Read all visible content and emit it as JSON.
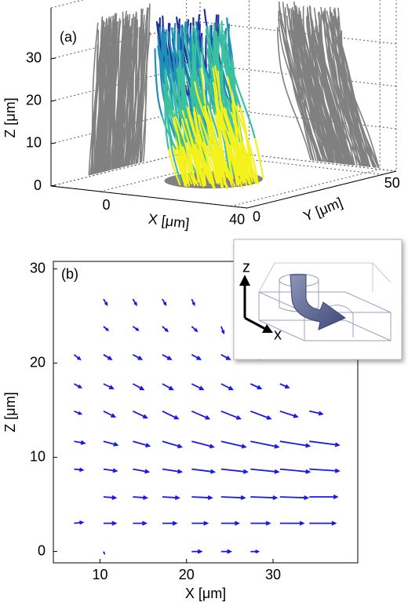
{
  "chart_data": [
    {
      "type": "trajectories3d",
      "panel_label": "(a)",
      "xlabel": "X [μm]",
      "ylabel": "Y [μm]",
      "zlabel": "Z [μm]",
      "xlim": [
        -15,
        45
      ],
      "ylim": [
        0,
        55
      ],
      "zlim": [
        0,
        42
      ],
      "xticks": [
        0,
        40
      ],
      "yticks": [
        0,
        50
      ],
      "zticks": [
        0,
        10,
        20,
        30
      ],
      "colormap": [
        "#22339a",
        "#1f8fb8",
        "#3bc0a0",
        "#f4f21c"
      ],
      "wall_color": "#808080"
    },
    {
      "type": "quiver",
      "panel_label": "(b)",
      "xlabel": "X [μm]",
      "ylabel": "Z [μm]",
      "xlim": [
        4.6,
        39.8
      ],
      "ylim": [
        -1.2,
        30.8
      ],
      "xticks": [
        10,
        20,
        30
      ],
      "yticks": [
        0,
        10,
        20,
        30
      ],
      "color": "#1a1ae6",
      "inset_labels": [
        "z",
        "x"
      ],
      "x": [
        10.4,
        13.8,
        17.2,
        20.6,
        10.4,
        13.8,
        17.2,
        20.6,
        24,
        7,
        10.4,
        13.8,
        17.2,
        20.6,
        24,
        27.4,
        7,
        10.4,
        13.8,
        17.2,
        20.6,
        24,
        27.4,
        30.8,
        7,
        10.4,
        13.8,
        17.2,
        20.6,
        24,
        27.4,
        30.8,
        34.2,
        7,
        10.4,
        13.8,
        17.2,
        20.6,
        24,
        27.4,
        30.8,
        34.2,
        7,
        10.4,
        13.8,
        17.2,
        20.6,
        24,
        27.4,
        30.8,
        34.2,
        10.4,
        13.8,
        17.2,
        20.6,
        24,
        27.4,
        30.8,
        34.2,
        7,
        10.4,
        13.8,
        17.2,
        20.6,
        24,
        27.4,
        30.8,
        34.2,
        10.4,
        20.6,
        24,
        27.4
      ],
      "y": [
        26.8,
        26.8,
        26.8,
        26.8,
        23.9,
        23.9,
        23.9,
        23.9,
        23.9,
        20.9,
        20.9,
        20.9,
        20.9,
        20.9,
        20.9,
        20.9,
        17.8,
        17.8,
        17.8,
        17.8,
        17.8,
        17.8,
        17.8,
        17.8,
        14.9,
        14.9,
        14.9,
        14.9,
        14.9,
        14.9,
        14.9,
        14.9,
        14.9,
        11.7,
        11.7,
        11.7,
        11.7,
        11.7,
        11.7,
        11.7,
        11.7,
        11.7,
        8.75,
        8.75,
        8.75,
        8.75,
        8.75,
        8.75,
        8.75,
        8.75,
        8.75,
        5.8,
        5.8,
        5.8,
        5.8,
        5.8,
        5.8,
        5.8,
        5.8,
        3,
        3,
        3,
        3,
        3,
        3,
        3,
        3,
        3,
        0,
        0,
        0,
        0
      ],
      "u": [
        0.4,
        0.4,
        0.4,
        0.3,
        0.5,
        0.6,
        0.6,
        0.6,
        0.3,
        0.7,
        0.9,
        1.0,
        1.0,
        1.0,
        1.0,
        1.0,
        0.8,
        1.1,
        1.2,
        1.2,
        1.3,
        1.3,
        1.2,
        1.0,
        0.8,
        1.3,
        1.6,
        1.8,
        2.0,
        2.2,
        2.3,
        2.0,
        1.5,
        1.2,
        1.6,
        1.9,
        2.2,
        2.5,
        2.8,
        3.2,
        3.4,
        3.4,
        1.0,
        1.5,
        1.8,
        2.2,
        2.6,
        3.0,
        3.2,
        3.4,
        3.4,
        1.4,
        1.6,
        1.9,
        2.3,
        2.7,
        3.0,
        3.2,
        3.2,
        1.0,
        1.4,
        1.5,
        1.6,
        1.8,
        2.0,
        2.2,
        2.7,
        3.0,
        0.1,
        1.1,
        1.1,
        0.9
      ],
      "v": [
        -0.6,
        -0.6,
        -0.6,
        -0.6,
        -0.4,
        -0.4,
        -0.5,
        -0.5,
        -0.7,
        -0.5,
        -0.5,
        -0.5,
        -0.5,
        -0.5,
        -0.5,
        -0.5,
        -0.4,
        -0.5,
        -0.6,
        -0.6,
        -0.6,
        -0.6,
        -0.5,
        -0.4,
        -0.3,
        -0.6,
        -0.7,
        -0.8,
        -0.8,
        -0.8,
        -0.8,
        -0.6,
        -0.3,
        -0.2,
        -0.4,
        -0.5,
        -0.6,
        -0.6,
        -0.6,
        -0.6,
        -0.5,
        -0.4,
        -0.1,
        -0.2,
        -0.3,
        -0.3,
        -0.3,
        -0.3,
        -0.3,
        -0.3,
        -0.2,
        -0.1,
        -0.1,
        -0.1,
        -0.1,
        -0.1,
        -0.1,
        -0.1,
        0,
        0.1,
        0,
        0,
        0,
        0,
        0,
        0,
        0,
        0,
        -0.2,
        0,
        0,
        0
      ]
    }
  ]
}
